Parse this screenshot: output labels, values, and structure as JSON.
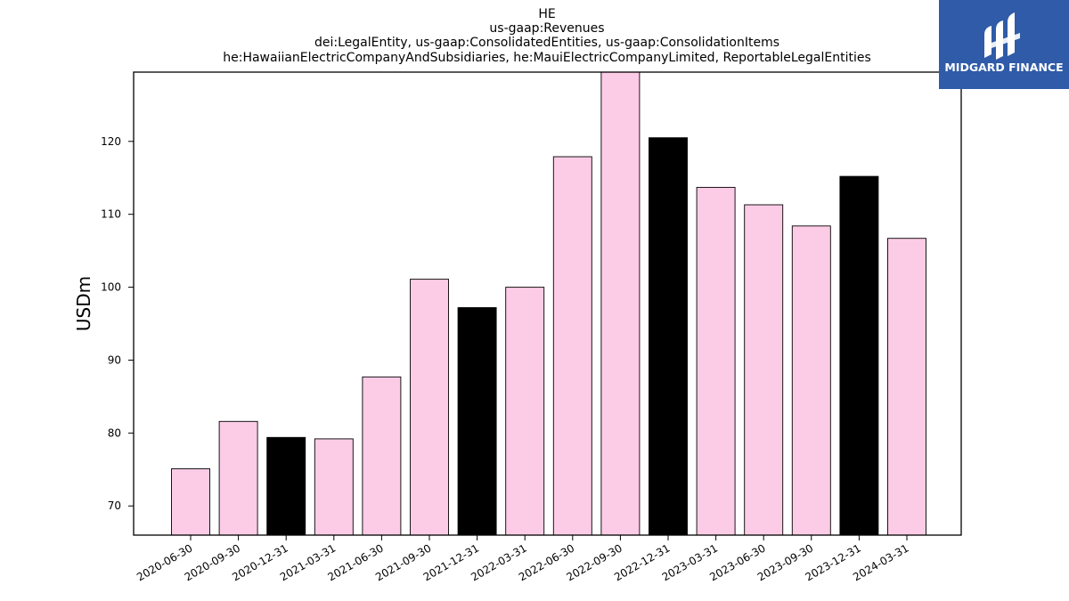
{
  "chart_data": {
    "type": "bar",
    "title_lines": [
      "HE",
      "us-gaap:Revenues",
      "dei:LegalEntity, us-gaap:ConsolidatedEntities, us-gaap:ConsolidationItems",
      "he:HawaiianElectricCompanyAndSubsidiaries, he:MauiElectricCompanyLimited, ReportableLegalEntities"
    ],
    "xlabel": "",
    "ylabel": "USDm",
    "ylim": [
      66,
      129.5
    ],
    "yticks": [
      70,
      80,
      90,
      100,
      110,
      120
    ],
    "categories": [
      "2020-06-30",
      "2020-09-30",
      "2020-12-31",
      "2021-03-31",
      "2021-06-30",
      "2021-09-30",
      "2021-12-31",
      "2022-03-31",
      "2022-06-30",
      "2022-09-30",
      "2022-12-31",
      "2023-03-31",
      "2023-06-30",
      "2023-09-30",
      "2023-12-31",
      "2024-03-31"
    ],
    "values": [
      75.1,
      81.6,
      79.4,
      79.2,
      87.7,
      101.1,
      97.2,
      100.0,
      117.9,
      129.7,
      120.5,
      113.7,
      111.3,
      108.4,
      115.2,
      106.7
    ],
    "bar_colors": [
      "#fccbe6",
      "#fccbe6",
      "#000000",
      "#fccbe6",
      "#fccbe6",
      "#fccbe6",
      "#000000",
      "#fccbe6",
      "#fccbe6",
      "#fccbe6",
      "#000000",
      "#fccbe6",
      "#fccbe6",
      "#fccbe6",
      "#000000",
      "#fccbe6"
    ],
    "grid": false,
    "legend": "none"
  },
  "logo": {
    "text": "MIDGARD FINANCE",
    "background": "#2f5ba8",
    "icon": "midgard-logo-icon"
  }
}
